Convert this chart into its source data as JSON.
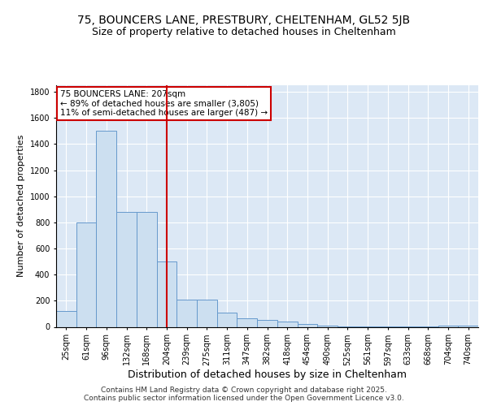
{
  "title1": "75, BOUNCERS LANE, PRESTBURY, CHELTENHAM, GL52 5JB",
  "title2": "Size of property relative to detached houses in Cheltenham",
  "xlabel": "Distribution of detached houses by size in Cheltenham",
  "ylabel": "Number of detached properties",
  "bin_labels": [
    "25sqm",
    "61sqm",
    "96sqm",
    "132sqm",
    "168sqm",
    "204sqm",
    "239sqm",
    "275sqm",
    "311sqm",
    "347sqm",
    "382sqm",
    "418sqm",
    "454sqm",
    "490sqm",
    "525sqm",
    "561sqm",
    "597sqm",
    "633sqm",
    "668sqm",
    "704sqm",
    "740sqm"
  ],
  "bar_values": [
    120,
    800,
    1500,
    880,
    880,
    500,
    210,
    210,
    110,
    65,
    50,
    40,
    20,
    10,
    5,
    5,
    2,
    2,
    2,
    10,
    10
  ],
  "bar_color": "#ccdff0",
  "bar_edgecolor": "#6699cc",
  "vline_index": 5,
  "vline_color": "#cc0000",
  "annotation_line1": "75 BOUNCERS LANE: 207sqm",
  "annotation_line2": "← 89% of detached houses are smaller (3,805)",
  "annotation_line3": "11% of semi-detached houses are larger (487) →",
  "annotation_box_edgecolor": "#cc0000",
  "annotation_facecolor": "#ffffff",
  "ylim": [
    0,
    1850
  ],
  "yticks": [
    0,
    200,
    400,
    600,
    800,
    1000,
    1200,
    1400,
    1600,
    1800
  ],
  "background_color": "#dce8f5",
  "grid_color": "#ffffff",
  "footer_text": "Contains HM Land Registry data © Crown copyright and database right 2025.\nContains public sector information licensed under the Open Government Licence v3.0.",
  "title1_fontsize": 10,
  "title2_fontsize": 9,
  "xlabel_fontsize": 9,
  "ylabel_fontsize": 8,
  "tick_fontsize": 7,
  "annotation_fontsize": 7.5,
  "footer_fontsize": 6.5
}
